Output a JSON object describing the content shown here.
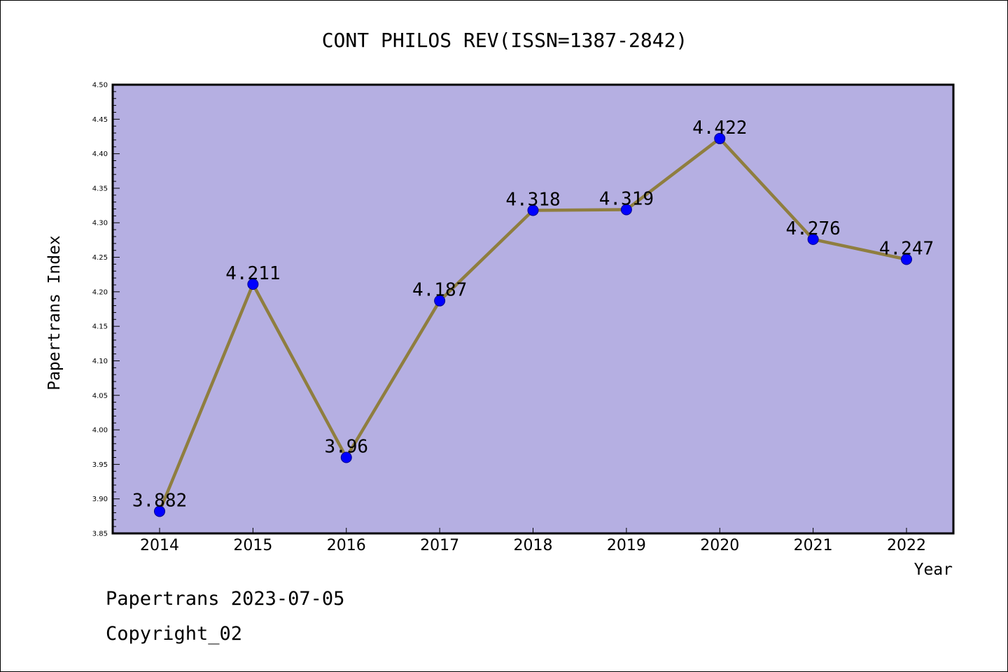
{
  "chart_data": {
    "type": "line",
    "title": "CONT PHILOS REV(ISSN=1387-2842)",
    "xlabel": "Year",
    "ylabel": "Papertrans Index",
    "categories": [
      "2014",
      "2015",
      "2016",
      "2017",
      "2018",
      "2019",
      "2020",
      "2021",
      "2022"
    ],
    "series": [
      {
        "values": [
          3.882,
          4.211,
          3.96,
          4.187,
          4.318,
          4.319,
          4.422,
          4.276,
          4.247
        ],
        "labels": [
          "3.882",
          "4.211",
          "3.96",
          "4.187",
          "4.318",
          "4.319",
          "4.422",
          "4.276",
          "4.247"
        ]
      }
    ],
    "ylim": [
      3.85,
      4.5
    ],
    "yticks": [
      "3.85",
      "3.90",
      "3.95",
      "4.00",
      "4.05",
      "4.10",
      "4.15",
      "4.20",
      "4.25",
      "4.30",
      "4.35",
      "4.40",
      "4.45",
      "4.50"
    ],
    "grid": false,
    "legend": "none",
    "colors": {
      "plot_background": "#b5afe2",
      "line": "#8f7e3f",
      "marker": "#0000ff",
      "marker_edge": "#00008b"
    }
  },
  "footer": {
    "date_text": "Papertrans 2023-07-05",
    "copyright_text": "Copyright_02"
  }
}
